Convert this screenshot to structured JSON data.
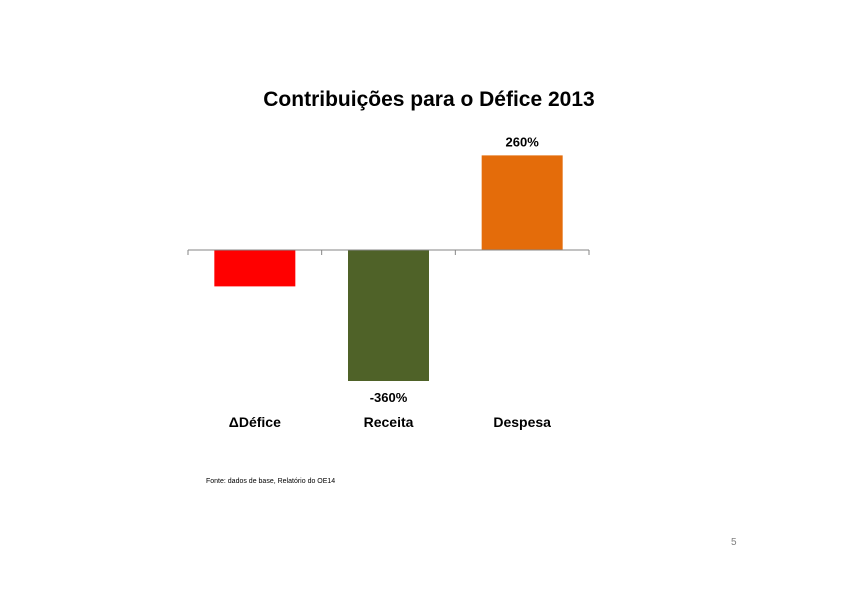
{
  "title": "Contribuições para o Défice 2013",
  "source": "Fonte: dados de base, Relatório do OE14",
  "page_number": "5",
  "chart_data": {
    "type": "bar",
    "title": "Contribuições para o Défice 2013",
    "xlabel": "",
    "ylabel": "",
    "categories": [
      "ΔDéfice",
      "Receita",
      "Despesa"
    ],
    "values": [
      -100,
      -360,
      260
    ],
    "value_unit": "%",
    "data_labels": [
      "",
      "-360%",
      "260%"
    ],
    "colors": [
      "#FF0000",
      "#4F6228",
      "#E46C0A"
    ],
    "ylim": [
      -360,
      260
    ],
    "grid": false,
    "legend": "none"
  }
}
